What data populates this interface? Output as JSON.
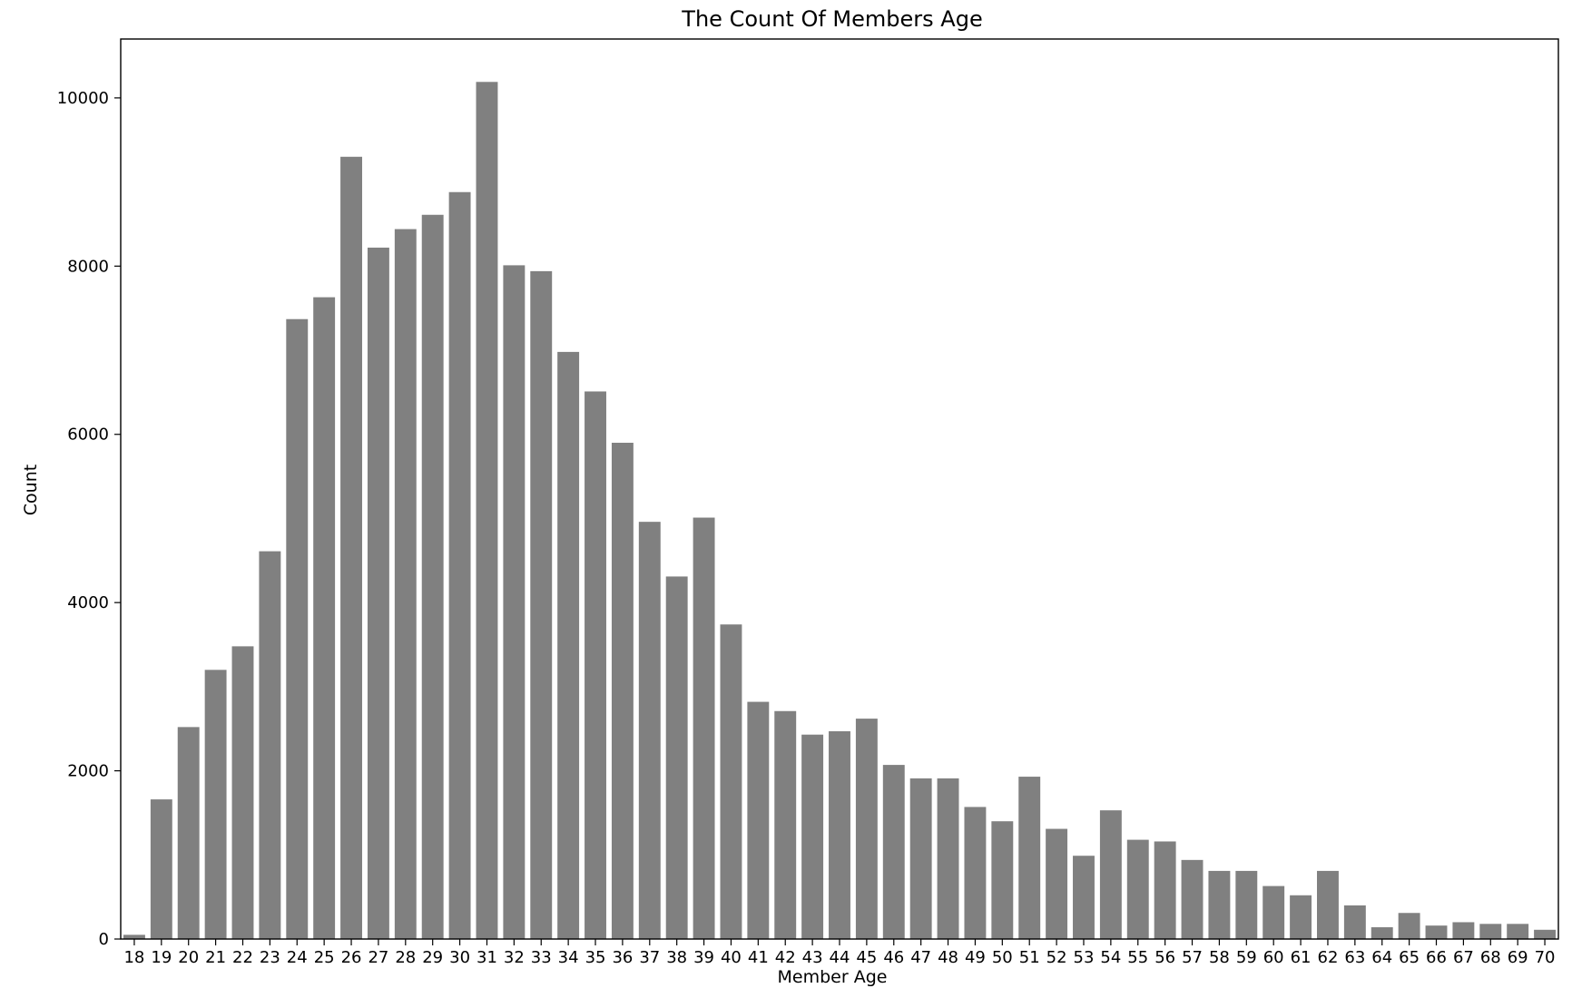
{
  "chart_data": {
    "type": "bar",
    "title": "The Count Of Members Age",
    "xlabel": "Member Age",
    "ylabel": "Count",
    "ylim": [
      0,
      10700
    ],
    "yticks": [
      0,
      2000,
      4000,
      6000,
      8000,
      10000
    ],
    "bar_color": "#808080",
    "frame_color": "#000000",
    "background": "#ffffff",
    "grid": false,
    "categories": [
      "18",
      "19",
      "20",
      "21",
      "22",
      "23",
      "24",
      "25",
      "26",
      "27",
      "28",
      "29",
      "30",
      "31",
      "32",
      "33",
      "34",
      "35",
      "36",
      "37",
      "38",
      "39",
      "40",
      "41",
      "42",
      "43",
      "44",
      "45",
      "46",
      "47",
      "48",
      "49",
      "50",
      "51",
      "52",
      "53",
      "54",
      "55",
      "56",
      "57",
      "58",
      "59",
      "60",
      "61",
      "62",
      "63",
      "64",
      "65",
      "66",
      "67",
      "68",
      "69",
      "70"
    ],
    "values": [
      50,
      1660,
      2520,
      3200,
      3480,
      4610,
      7370,
      7630,
      9300,
      8220,
      8440,
      8610,
      8880,
      10190,
      8010,
      7940,
      6980,
      6510,
      5900,
      4960,
      4310,
      5010,
      3740,
      2820,
      2710,
      2430,
      2470,
      2620,
      2070,
      1910,
      1910,
      1570,
      1400,
      1930,
      1310,
      990,
      1530,
      1180,
      1160,
      940,
      810,
      810,
      630,
      520,
      810,
      400,
      140,
      310,
      160,
      200,
      180,
      180,
      110
    ]
  }
}
